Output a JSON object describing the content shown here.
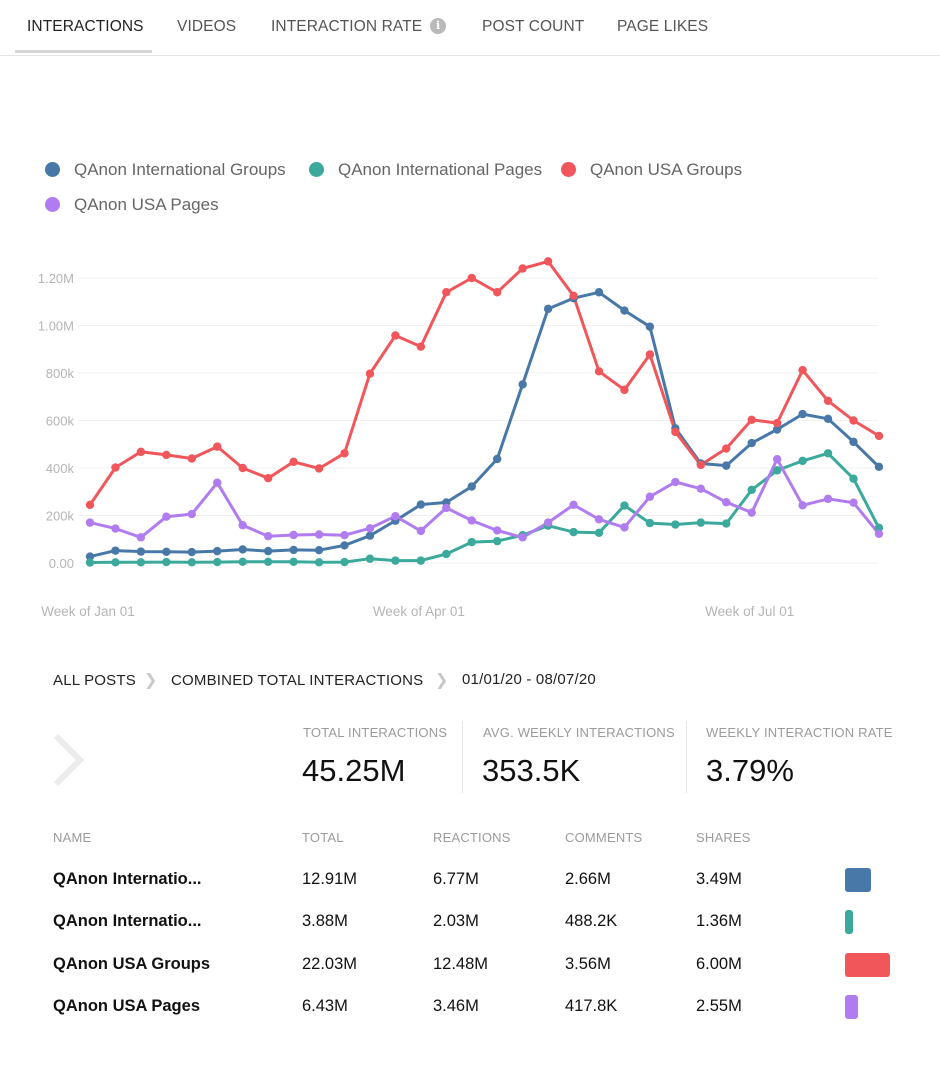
{
  "tabs": [
    {
      "label": "INTERACTIONS",
      "active": true
    },
    {
      "label": "VIDEOS"
    },
    {
      "label": "INTERACTION RATE"
    },
    {
      "label": "POST COUNT"
    },
    {
      "label": "PAGE LIKES"
    }
  ],
  "info_icon_glyph": "i",
  "legend": [
    {
      "name": "QAnon International Groups",
      "color": "#4878a8"
    },
    {
      "name": "QAnon International Pages",
      "color": "#3ba99c"
    },
    {
      "name": "QAnon USA Groups",
      "color": "#f0565a"
    },
    {
      "name": "QAnon USA Pages",
      "color": "#b07cf0"
    }
  ],
  "chart_data": {
    "type": "line",
    "x_count": 32,
    "x_tick_labels": [
      {
        "index": 0,
        "label": "Week of Jan 01"
      },
      {
        "index": 13,
        "label": "Week of Apr 01"
      },
      {
        "index": 26,
        "label": "Week of Jul 01"
      }
    ],
    "y_ticks": [
      {
        "value": 0,
        "label": "0.00"
      },
      {
        "value": 200000,
        "label": "200k"
      },
      {
        "value": 400000,
        "label": "400k"
      },
      {
        "value": 600000,
        "label": "600k"
      },
      {
        "value": 800000,
        "label": "800k"
      },
      {
        "value": 1000000,
        "label": "1.00M"
      },
      {
        "value": 1200000,
        "label": "1.20M"
      }
    ],
    "ylim": [
      0,
      1200000
    ],
    "grid": true,
    "legend_position": "top-left",
    "series": [
      {
        "name": "QAnon International Groups",
        "color": "#4878a8",
        "values": [
          27000,
          52000,
          48000,
          47000,
          46000,
          50000,
          57000,
          50000,
          55000,
          54000,
          74000,
          115000,
          178000,
          246000,
          255000,
          322000,
          438000,
          752000,
          1070000,
          1115000,
          1140000,
          1063000,
          995000,
          567000,
          419000,
          410000,
          505000,
          562000,
          627000,
          607000,
          510000,
          405000
        ]
      },
      {
        "name": "QAnon International Pages",
        "color": "#3ba99c",
        "values": [
          2000,
          3000,
          3000,
          4000,
          3000,
          4000,
          5000,
          5000,
          5000,
          3000,
          4000,
          18000,
          10000,
          10000,
          38000,
          88000,
          92000,
          117000,
          157000,
          130000,
          127000,
          242000,
          168000,
          162000,
          170000,
          166000,
          308000,
          390000,
          430000,
          462000,
          355000,
          148000
        ]
      },
      {
        "name": "QAnon USA Groups",
        "color": "#f0565a",
        "values": [
          245000,
          402000,
          468000,
          455000,
          440000,
          490000,
          400000,
          357000,
          426000,
          398000,
          462000,
          797000,
          958000,
          911000,
          1140000,
          1200000,
          1140000,
          1240000,
          1270000,
          1125000,
          807000,
          729000,
          878000,
          552000,
          413000,
          482000,
          603000,
          589000,
          812000,
          683000,
          600000,
          535000
        ]
      },
      {
        "name": "QAnon USA Pages",
        "color": "#b07cf0",
        "values": [
          170000,
          145000,
          108000,
          195000,
          206000,
          338000,
          159000,
          113000,
          118000,
          120000,
          117000,
          146000,
          197000,
          135000,
          232000,
          179000,
          137000,
          108000,
          170000,
          245000,
          184000,
          150000,
          279000,
          341000,
          313000,
          256000,
          212000,
          437000,
          243000,
          270000,
          254000,
          123000
        ]
      }
    ]
  },
  "breadcrumb": {
    "item1": "ALL POSTS",
    "item2": "COMBINED TOTAL INTERACTIONS",
    "date_range": "01/01/20 - 08/07/20"
  },
  "stats": [
    {
      "label": "TOTAL INTERACTIONS",
      "value": "45.25M"
    },
    {
      "label": "AVG. WEEKLY INTERACTIONS",
      "value": "353.5K"
    },
    {
      "label": "WEEKLY INTERACTION RATE",
      "value": "3.79%"
    }
  ],
  "table": {
    "headers": [
      "NAME",
      "TOTAL",
      "REACTIONS",
      "COMMENTS",
      "SHARES"
    ],
    "rows": [
      {
        "name": "QAnon Internatio...",
        "total": "12.91M",
        "reactions": "6.77M",
        "comments": "2.66M",
        "shares": "3.49M",
        "color": "#4878a8",
        "share_of_max": 0.586
      },
      {
        "name": "QAnon Internatio...",
        "total": "3.88M",
        "reactions": "2.03M",
        "comments": "488.2K",
        "shares": "1.36M",
        "color": "#3ba99c",
        "share_of_max": 0.176
      },
      {
        "name": "QAnon USA Groups",
        "total": "22.03M",
        "reactions": "12.48M",
        "comments": "3.56M",
        "shares": "6.00M",
        "color": "#f0565a",
        "share_of_max": 1.0
      },
      {
        "name": "QAnon USA Pages",
        "total": "6.43M",
        "reactions": "3.46M",
        "comments": "417.8K",
        "shares": "2.55M",
        "color": "#b07cf0",
        "share_of_max": 0.292
      }
    ]
  }
}
